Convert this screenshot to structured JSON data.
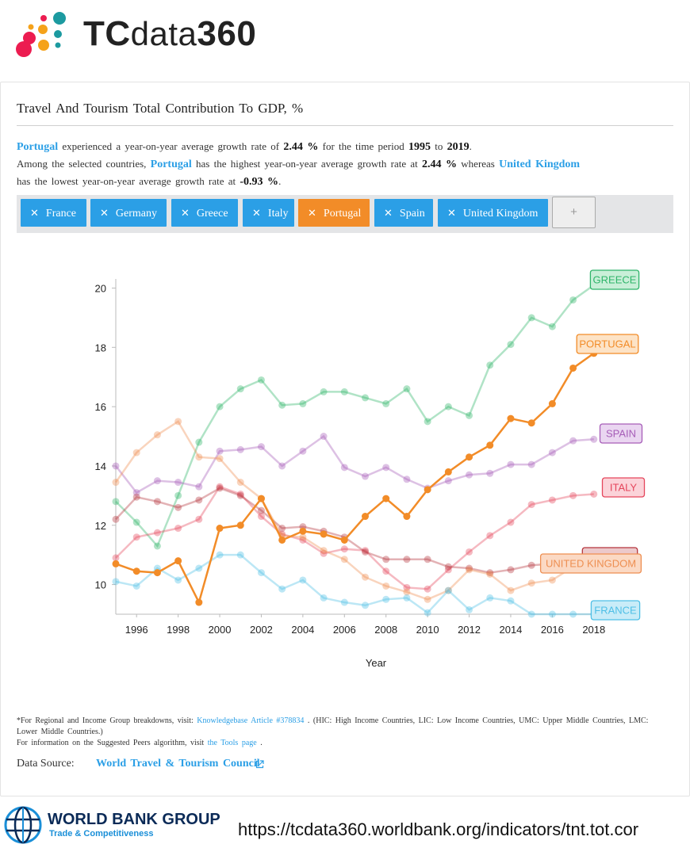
{
  "header": {
    "logo_tc": "TC",
    "logo_data": "data",
    "logo_360": "360"
  },
  "title": "Travel And Tourism Total Contribution To GDP, %",
  "summary": {
    "s1_country": "Portugal",
    "s1_a": "experienced a year-on-year average growth rate of",
    "s1_rate": "2.44 %",
    "s1_b": "for the time period",
    "s1_from": "1995",
    "s1_to_word": "to",
    "s1_to": "2019",
    "s1_end": ".",
    "s2_a": "Among the selected countries,",
    "s2_high": "Portugal",
    "s2_b": "has the highest year-on-year average growth rate at",
    "s2_high_rate": "2.44 %",
    "s2_c": "whereas",
    "s2_low": "United Kingdom",
    "s2_d": "has the lowest year-on-year average growth rate at",
    "s2_low_rate": "-0.93 %",
    "s2_end": "."
  },
  "chips": [
    {
      "label": "France",
      "active": false
    },
    {
      "label": "Germany",
      "active": false
    },
    {
      "label": "Greece",
      "active": false
    },
    {
      "label": "Italy",
      "active": false
    },
    {
      "label": "Portugal",
      "active": true
    },
    {
      "label": "Spain",
      "active": false
    },
    {
      "label": "United Kingdom",
      "active": false
    }
  ],
  "add_label": "+",
  "chart_data": {
    "type": "line",
    "xlabel": "Year",
    "ylabel": "",
    "xlim": [
      1995,
      2019
    ],
    "ylim": [
      9,
      20.2
    ],
    "yticks": [
      10,
      12,
      14,
      16,
      18,
      20
    ],
    "xticks": [
      1996,
      1998,
      2000,
      2002,
      2004,
      2006,
      2008,
      2010,
      2012,
      2014,
      2016,
      2018
    ],
    "x": [
      1995,
      1996,
      1997,
      1998,
      1999,
      2000,
      2001,
      2002,
      2003,
      2004,
      2005,
      2006,
      2007,
      2008,
      2009,
      2010,
      2011,
      2012,
      2013,
      2014,
      2015,
      2016,
      2017,
      2018
    ],
    "series": [
      {
        "name": "GREECE",
        "color": "#2fb56a",
        "highlight": false,
        "values": [
          12.8,
          12.1,
          11.3,
          13.0,
          14.8,
          16.0,
          16.6,
          16.9,
          16.05,
          16.1,
          16.5,
          16.5,
          16.3,
          16.1,
          16.6,
          15.5,
          16.0,
          15.7,
          17.4,
          18.1,
          19.0,
          18.7,
          19.6,
          20.1
        ]
      },
      {
        "name": "PORTUGAL",
        "color": "#f28c28",
        "highlight": true,
        "values": [
          10.7,
          10.45,
          10.4,
          10.8,
          9.4,
          11.9,
          12.0,
          12.9,
          11.5,
          11.8,
          11.7,
          11.5,
          12.3,
          12.9,
          12.3,
          13.2,
          13.8,
          14.3,
          14.7,
          15.6,
          15.45,
          16.1,
          17.3,
          17.8
        ]
      },
      {
        "name": "SPAIN",
        "color": "#a65db8",
        "highlight": false,
        "values": [
          14.0,
          13.1,
          13.5,
          13.45,
          13.3,
          14.5,
          14.55,
          14.65,
          14.0,
          14.5,
          15.0,
          13.95,
          13.65,
          13.95,
          13.55,
          13.25,
          13.5,
          13.7,
          13.75,
          14.05,
          14.05,
          14.45,
          14.85,
          14.9
        ]
      },
      {
        "name": "ITALY",
        "color": "#e5465c",
        "highlight": false,
        "values": [
          10.9,
          11.6,
          11.75,
          11.9,
          12.2,
          13.3,
          13.05,
          12.3,
          11.7,
          11.5,
          11.05,
          11.2,
          11.15,
          10.45,
          9.9,
          9.85,
          10.5,
          11.1,
          11.65,
          12.1,
          12.7,
          12.85,
          13.0,
          13.05
        ]
      },
      {
        "name": "GERMANY",
        "color": "#b5353d",
        "highlight": false,
        "values": [
          12.2,
          12.95,
          12.8,
          12.6,
          12.85,
          13.25,
          13.0,
          12.5,
          11.9,
          11.95,
          11.8,
          11.6,
          11.1,
          10.85,
          10.85,
          10.85,
          10.6,
          10.55,
          10.4,
          10.5,
          10.65,
          10.7,
          10.75,
          10.75
        ]
      },
      {
        "name": "UNITED KINGDOM",
        "color": "#ee8f52",
        "highlight": false,
        "values": [
          13.45,
          14.45,
          15.05,
          15.5,
          14.3,
          14.25,
          13.45,
          12.9,
          11.65,
          11.6,
          11.15,
          10.85,
          10.25,
          9.95,
          9.75,
          9.5,
          9.8,
          10.5,
          10.35,
          9.8,
          10.05,
          10.15,
          10.6,
          10.6
        ]
      },
      {
        "name": "FRANCE",
        "color": "#4fbfe6",
        "highlight": false,
        "values": [
          10.1,
          9.95,
          10.55,
          10.15,
          10.55,
          11.0,
          11.0,
          10.4,
          9.85,
          10.15,
          9.55,
          9.4,
          9.3,
          9.5,
          9.55,
          9.05,
          9.8,
          9.15,
          9.55,
          9.45,
          9.0,
          9.0,
          9.0,
          9.0
        ]
      }
    ]
  },
  "footnote": {
    "p1_a": "*For Regional and Income Group breakdowns, visit:",
    "p1_link": "Knowledgebase Article #378834",
    "p1_b": ". (HIC: High Income Countries, LIC: Low Income Countries, UMC: Upper Middle Countries, LMC: Lower Middle Countries.)",
    "p2_a": "For information on the Suggested Peers algorithm, visit",
    "p2_link": "the Tools page",
    "p2_b": "."
  },
  "source": {
    "label": "Data Source:",
    "link": "World Travel & Tourism Council"
  },
  "footer": {
    "wb_title": "WORLD BANK GROUP",
    "wb_sub": "Trade & Competitiveness",
    "url": "https://tcdata360.worldbank.org/indicators/tnt.tot.cor"
  }
}
